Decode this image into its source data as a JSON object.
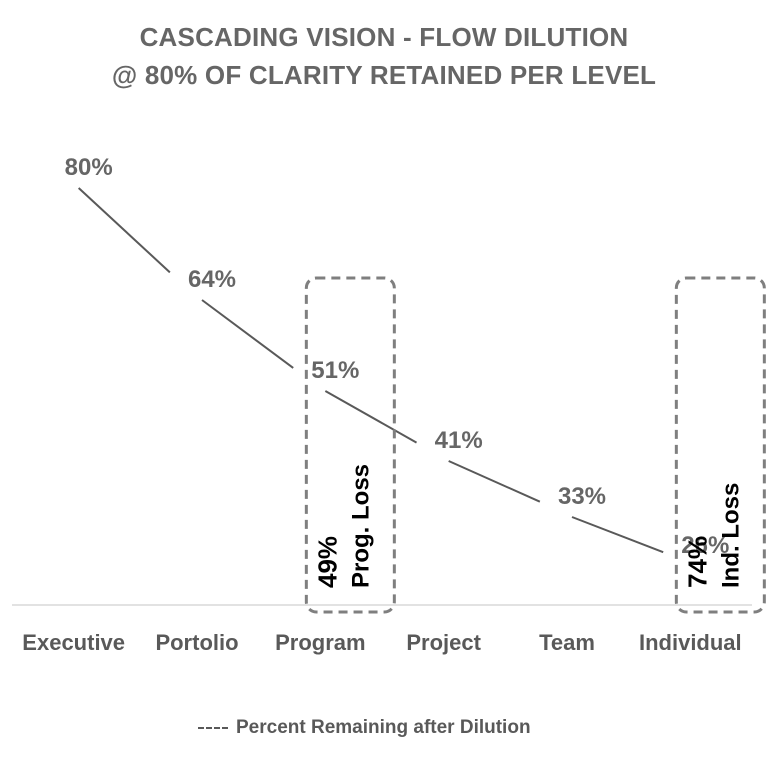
{
  "title": "CASCADING VISION - FLOW DILUTION",
  "subtitle": "@ 80% OF CLARITY RETAINED PER LEVEL",
  "colors": {
    "line": "#595959",
    "text": "#666666",
    "callout_text": "#000000",
    "callout_border": "#7f7f7f"
  },
  "chart_data": {
    "type": "line",
    "categories": [
      "Executive",
      "Portolio",
      "Program",
      "Project",
      "Team",
      "Individual"
    ],
    "series": [
      {
        "name": "Percent Remaining after Dilution",
        "values": [
          80,
          64,
          51,
          41,
          33,
          26
        ],
        "labels": [
          "80%",
          "64%",
          "51%",
          "41%",
          "33%",
          "26%"
        ]
      }
    ],
    "ylim": [
      0,
      100
    ],
    "grid": false,
    "legend_position": "bottom",
    "line_style": "dashed",
    "callouts": [
      {
        "category": "Program",
        "value_text": "49%",
        "label_text": "Prog. Loss"
      },
      {
        "category": "Individual",
        "value_text": "74%",
        "label_text": "Ind. Loss"
      }
    ]
  }
}
